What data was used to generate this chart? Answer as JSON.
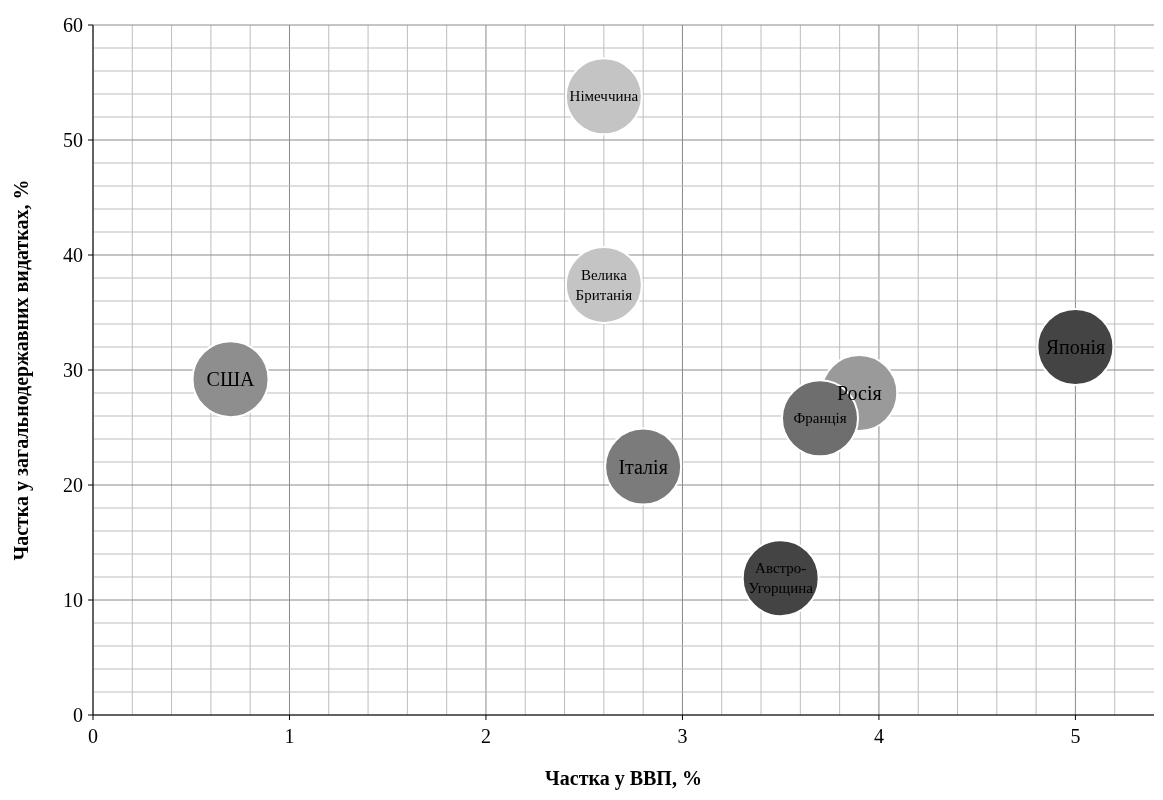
{
  "chart_data": {
    "type": "bubble",
    "xlabel": "Частка у ВВП, %",
    "ylabel": "Частка у загальнодержавних видатках, %",
    "xlim": [
      0,
      5.4
    ],
    "ylim": [
      0,
      60
    ],
    "xticks": [
      0,
      {
        "value": 0.2,
        "label": null
      },
      {
        "value": 0.4,
        "label": null
      },
      {
        "value": 0.6,
        "label": null
      },
      {
        "value": 0.8,
        "label": null
      },
      1,
      {
        "value": 1.2,
        "label": null
      },
      {
        "value": 1.4,
        "label": null
      },
      {
        "value": 1.6,
        "label": null
      },
      {
        "value": 1.8,
        "label": null
      },
      2,
      {
        "value": 2.2,
        "label": null
      },
      {
        "value": 2.4,
        "label": null
      },
      {
        "value": 2.6,
        "label": null
      },
      {
        "value": 2.8,
        "label": null
      },
      3,
      {
        "value": 3.2,
        "label": null
      },
      {
        "value": 3.4,
        "label": null
      },
      {
        "value": 3.6,
        "label": null
      },
      {
        "value": 3.8,
        "label": null
      },
      4,
      {
        "value": 4.2,
        "label": null
      },
      {
        "value": 4.4,
        "label": null
      },
      {
        "value": 4.6,
        "label": null
      },
      {
        "value": 4.8,
        "label": null
      },
      5,
      {
        "value": 5.2,
        "label": null
      }
    ],
    "yticks": [
      0,
      {
        "value": 2,
        "label": null
      },
      {
        "value": 4,
        "label": null
      },
      {
        "value": 6,
        "label": null
      },
      {
        "value": 8,
        "label": null
      },
      10,
      {
        "value": 12,
        "label": null
      },
      {
        "value": 14,
        "label": null
      },
      {
        "value": 16,
        "label": null
      },
      {
        "value": 18,
        "label": null
      },
      20,
      {
        "value": 22,
        "label": null
      },
      {
        "value": 24,
        "label": null
      },
      {
        "value": 26,
        "label": null
      },
      {
        "value": 28,
        "label": null
      },
      30,
      {
        "value": 32,
        "label": null
      },
      {
        "value": 34,
        "label": null
      },
      {
        "value": 36,
        "label": null
      },
      {
        "value": 38,
        "label": null
      },
      40,
      {
        "value": 42,
        "label": null
      },
      {
        "value": 44,
        "label": null
      },
      {
        "value": 46,
        "label": null
      },
      {
        "value": 48,
        "label": null
      },
      50,
      {
        "value": 52,
        "label": null
      },
      {
        "value": 54,
        "label": null
      },
      {
        "value": 56,
        "label": null
      },
      {
        "value": 58,
        "label": null
      },
      60
    ],
    "grid": true,
    "series": [
      {
        "name": "США",
        "color": "#8e8e8e",
        "x": [
          0.7
        ],
        "values": [
          29.2
        ],
        "sizes": [
          1
        ]
      },
      {
        "name": "Німеччина",
        "color": "#c4c4c4",
        "x": [
          2.6
        ],
        "values": [
          53.8
        ],
        "sizes": [
          1
        ]
      },
      {
        "name": "Велика Британія",
        "color": "#c4c4c4",
        "x": [
          2.6
        ],
        "values": [
          37.4
        ],
        "sizes": [
          1
        ]
      },
      {
        "name": "Італія",
        "color": "#7b7b7b",
        "x": [
          2.8
        ],
        "values": [
          21.6
        ],
        "sizes": [
          1
        ]
      },
      {
        "name": "Австро-Угорщина",
        "color": "#444444",
        "x": [
          3.5
        ],
        "values": [
          11.9
        ],
        "sizes": [
          1
        ]
      },
      {
        "name": "Росія",
        "color": "#9a9a9a",
        "x": [
          3.9
        ],
        "values": [
          28
        ],
        "sizes": [
          1
        ]
      },
      {
        "name": "Франція",
        "color": "#6e6e6e",
        "x": [
          3.7
        ],
        "values": [
          25.8
        ],
        "sizes": [
          1
        ]
      },
      {
        "name": "Японія",
        "color": "#444444",
        "x": [
          5
        ],
        "values": [
          32
        ],
        "sizes": [
          1
        ]
      }
    ]
  }
}
